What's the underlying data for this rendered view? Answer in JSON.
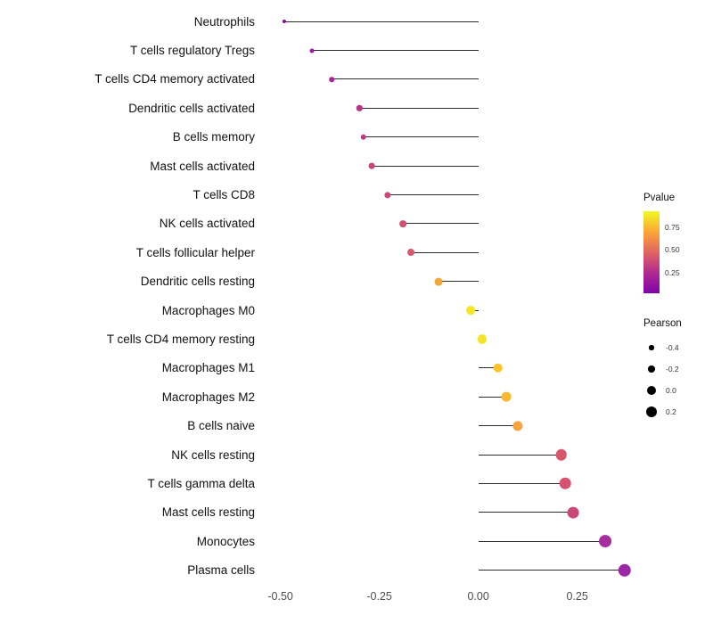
{
  "figure": {
    "background": "#ffffff"
  },
  "chart_data": {
    "type": "scatter",
    "subtype": "lollipop-horizontal",
    "title": "",
    "xlabel": "",
    "ylabel": "",
    "grid": false,
    "baseline": 0,
    "xlim": [
      -0.533,
      0.413
    ],
    "x_ticks": [
      {
        "label": "-0.50",
        "value": -0.5
      },
      {
        "label": "-0.25",
        "value": -0.25
      },
      {
        "label": "0.00",
        "value": 0.0
      },
      {
        "label": "0.25",
        "value": 0.25
      }
    ],
    "points": [
      {
        "category": "Neutrophils",
        "pearson": -0.49,
        "color": "#8b0aa5"
      },
      {
        "category": "T cells regulatory  Tregs",
        "pearson": -0.42,
        "color": "#a01a9c"
      },
      {
        "category": "T cells CD4 memory activated",
        "pearson": -0.37,
        "color": "#aa2395"
      },
      {
        "category": "Dendritic cells activated",
        "pearson": -0.3,
        "color": "#b93389"
      },
      {
        "category": "B cells memory",
        "pearson": -0.29,
        "color": "#c03a83"
      },
      {
        "category": "Mast cells activated",
        "pearson": -0.27,
        "color": "#c6417d"
      },
      {
        "category": "T cells CD8",
        "pearson": -0.23,
        "color": "#cc4778"
      },
      {
        "category": "NK cells activated",
        "pearson": -0.19,
        "color": "#d24f71"
      },
      {
        "category": "T cells follicular helper",
        "pearson": -0.17,
        "color": "#d8576b"
      },
      {
        "category": "Dendritic cells resting",
        "pearson": -0.1,
        "color": "#f1a63a"
      },
      {
        "category": "Macrophages M0",
        "pearson": -0.02,
        "color": "#f4e625"
      },
      {
        "category": "T cells CD4 memory resting",
        "pearson": 0.01,
        "color": "#f2e52c"
      },
      {
        "category": "Macrophages M1",
        "pearson": 0.05,
        "color": "#fdc429"
      },
      {
        "category": "Macrophages M2",
        "pearson": 0.07,
        "color": "#fbb832"
      },
      {
        "category": "B cells naive",
        "pearson": 0.1,
        "color": "#f8a33c"
      },
      {
        "category": "NK cells resting",
        "pearson": 0.21,
        "color": "#d8576b"
      },
      {
        "category": "T cells gamma delta",
        "pearson": 0.22,
        "color": "#d5536f"
      },
      {
        "category": "Mast cells resting",
        "pearson": 0.24,
        "color": "#cb4679"
      },
      {
        "category": "Monocytes",
        "pearson": 0.32,
        "color": "#a62e9e"
      },
      {
        "category": "Plasma cells",
        "pearson": 0.37,
        "color": "#9c27a5"
      }
    ],
    "legends": {
      "pvalue": {
        "title": "Pvalue",
        "gradient": [
          "#f0f921",
          "#fca636",
          "#e16462",
          "#b12a90",
          "#7e03a8"
        ],
        "ticks": [
          {
            "label": "0.75",
            "pos": 0.2
          },
          {
            "label": "0.50",
            "pos": 0.47
          },
          {
            "label": "0.25",
            "pos": 0.75
          }
        ]
      },
      "pearson": {
        "title": "Pearson",
        "entries": [
          {
            "label": "-0.4",
            "value": -0.4
          },
          {
            "label": "-0.2",
            "value": -0.2
          },
          {
            "label": "0.0",
            "value": 0.0
          },
          {
            "label": "0.2",
            "value": 0.2
          }
        ]
      }
    }
  }
}
